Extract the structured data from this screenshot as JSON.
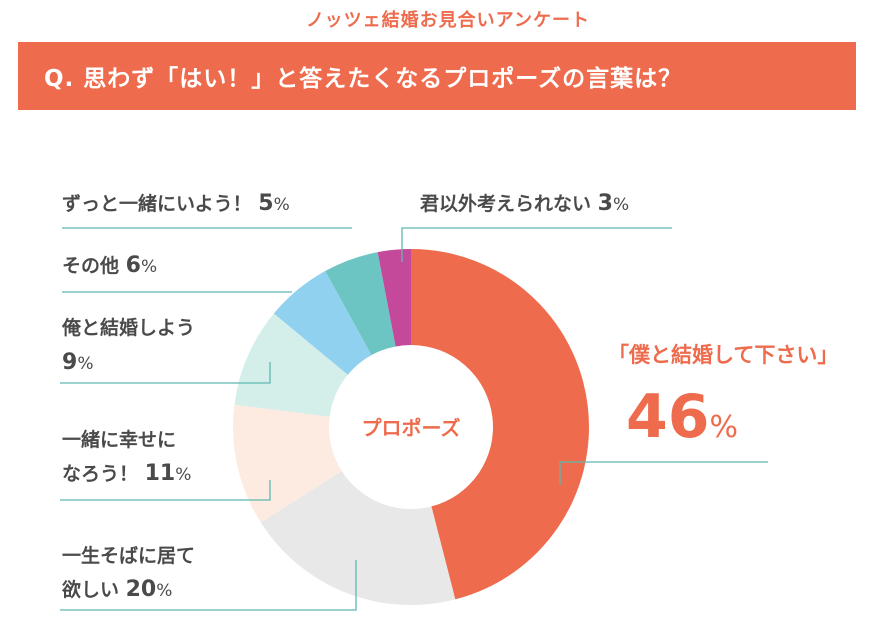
{
  "header": {
    "title": "ノッツェ結婚お見合いアンケート"
  },
  "question": {
    "text": "Q. 思わず「はい！」と答えたくなるプロポーズの言葉は？"
  },
  "colors": {
    "accent": "#ee6c4d",
    "title_text": "#ee6c4d",
    "leader": "#5fb8b0"
  },
  "chart_data": {
    "type": "pie",
    "center_label": "プロポーズ",
    "slices": [
      {
        "name": "「僕と結婚して下さい」",
        "value": 46,
        "display": "46",
        "color": "#ee6c4d"
      },
      {
        "name": "一生そばに居て欲しい",
        "value": 20,
        "display": "20",
        "color": "#e8e8e8"
      },
      {
        "name": "一緒に幸せになろう！",
        "value": 11,
        "display": "11",
        "color": "#fdebe1"
      },
      {
        "name": "俺と結婚しよう",
        "value": 9,
        "display": "9",
        "color": "#d4eeea"
      },
      {
        "name": "その他",
        "value": 6,
        "display": "6",
        "color": "#8fd1ef"
      },
      {
        "name": "ずっと一緒にいよう！",
        "value": 5,
        "display": "5",
        "color": "#6cc5c2"
      },
      {
        "name": "君以外考えられない",
        "value": 3,
        "display": "3",
        "color": "#c4499b"
      }
    ],
    "unit": "%"
  }
}
